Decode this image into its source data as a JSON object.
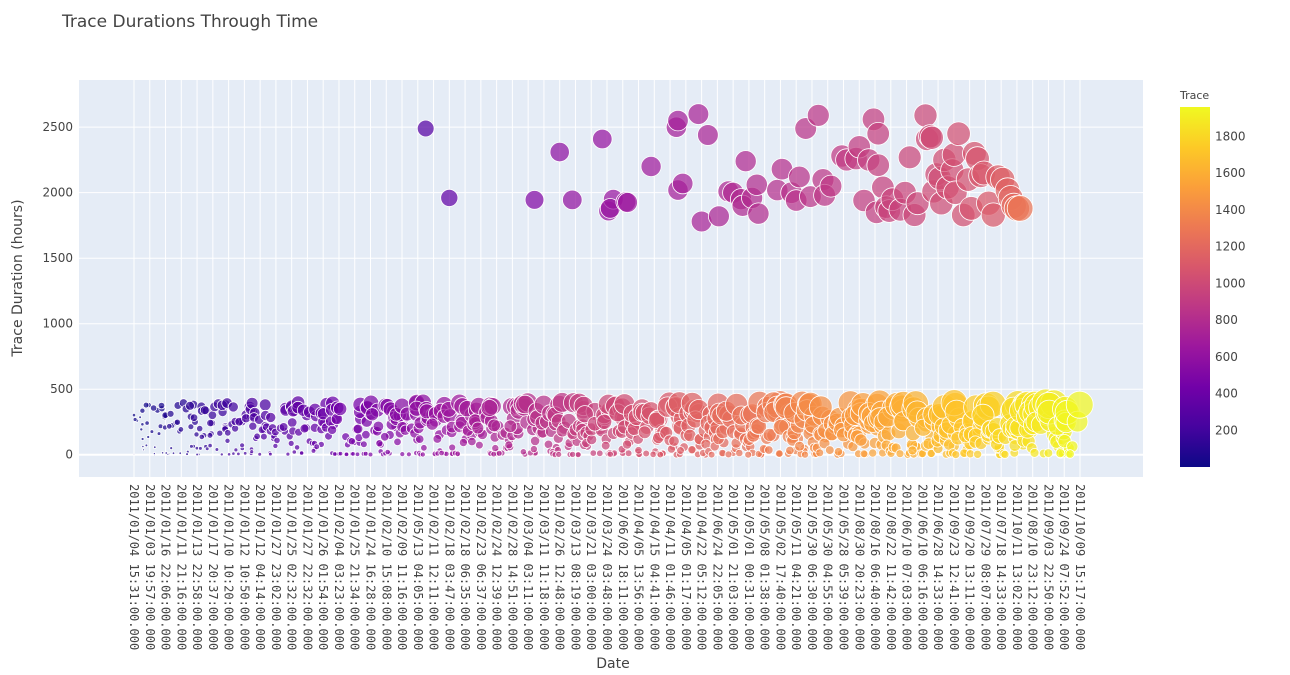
{
  "chart_data": {
    "type": "scatter",
    "title": "Trace Durations Through Time",
    "xlabel": "Date",
    "ylabel": "Trace Duration (hours)",
    "ylim": [
      -170,
      2860
    ],
    "yticks": [
      0,
      500,
      1000,
      1500,
      2000,
      2500
    ],
    "x_type": "category",
    "x_categories": [
      "2011/01/04 15:31:00.000",
      "2011/01/03 19:57:00.000",
      "2011/01/16 22:06:00.000",
      "2011/01/11 21:16:00.000",
      "2011/01/13 22:58:00.000",
      "2011/01/17 20:37:00.000",
      "2011/01/10 10:20:00.000",
      "2011/01/12 10:50:00.000",
      "2011/01/12 04:14:00.000",
      "2011/01/27 23:02:00.000",
      "2011/01/25 02:32:00.000",
      "2011/01/27 22:32:00.000",
      "2011/01/26 01:54:00.000",
      "2011/02/04 03:23:00.000",
      "2011/01/25 21:34:00.000",
      "2011/01/24 16:28:00.000",
      "2011/02/10 15:08:00.000",
      "2011/02/09 11:16:00.000",
      "2011/05/13 04:05:00.000",
      "2011/02/11 12:11:00.000",
      "2011/02/18 03:47:00.000",
      "2011/02/18 06:35:00.000",
      "2011/02/23 06:37:00.000",
      "2011/02/24 12:39:00.000",
      "2011/02/28 14:51:00.000",
      "2011/03/04 03:11:00.000",
      "2011/03/11 11:18:00.000",
      "2011/02/26 12:48:00.000",
      "2011/03/13 08:19:00.000",
      "2011/03/21 03:00:00.000",
      "2011/03/24 03:48:00.000",
      "2011/06/02 18:11:00.000",
      "2011/04/05 13:56:00.000",
      "2011/04/15 04:41:00.000",
      "2011/04/11 01:46:00.000",
      "2011/04/05 01:17:00.000",
      "2011/04/22 05:12:00.000",
      "2011/06/24 22:05:00.000",
      "2011/05/01 21:03:00.000",
      "2011/05/01 00:31:00.000",
      "2011/05/08 01:38:00.000",
      "2011/05/02 17:40:00.000",
      "2011/05/11 04:21:00.000",
      "2011/05/30 06:30:00.000",
      "2011/05/30 04:55:00.000",
      "2011/05/28 05:39:00.000",
      "2011/08/30 20:23:00.000",
      "2011/08/16 06:40:00.000",
      "2011/08/22 11:42:00.000",
      "2011/06/10 07:03:00.000",
      "2011/06/10 06:16:00.000",
      "2011/06/28 14:33:00.000",
      "2011/09/23 12:41:00.000",
      "2011/09/20 13:11:00.000",
      "2011/07/29 08:07:00.000",
      "2011/07/18 14:33:00.000",
      "2011/10/11 13:02:00.000",
      "2011/08/10 23:12:00.000",
      "2011/09/03 22:50:00.000",
      "2011/09/24 07:52:00.000",
      "2011/10/09 15:17:00.000"
    ],
    "series": [
      {
        "marker": "bubble",
        "size_by": "Trace",
        "color_by": "Trace"
      }
    ],
    "colorbar": {
      "title": "Trace",
      "range": [
        1,
        1960
      ],
      "ticks": [
        200,
        400,
        600,
        800,
        1000,
        1200,
        1400,
        1600,
        1800
      ],
      "colorscale": "plasma",
      "stops": [
        "#0d0887",
        "#46039f",
        "#7201a8",
        "#9c179e",
        "#bd3786",
        "#d8576b",
        "#ed7953",
        "#fb9f3a",
        "#fdca26",
        "#f0f921"
      ]
    },
    "big_points": [
      [
        18.5,
        2490,
        300
      ],
      [
        20.0,
        1960,
        352
      ],
      [
        25.4,
        1945,
        520
      ],
      [
        27.0,
        2310,
        580
      ],
      [
        27.8,
        1945,
        600
      ],
      [
        29.7,
        2410,
        620
      ],
      [
        30.1,
        1860,
        628
      ],
      [
        30.4,
        1950,
        634
      ],
      [
        30.2,
        1880,
        630
      ],
      [
        31.2,
        1930,
        650
      ],
      [
        31.3,
        1925,
        652
      ],
      [
        32.8,
        2200,
        680
      ],
      [
        34.5,
        2020,
        700
      ],
      [
        34.4,
        2500,
        705
      ],
      [
        34.5,
        2550,
        708
      ],
      [
        34.8,
        2070,
        712
      ],
      [
        35.8,
        2600,
        730
      ],
      [
        36.0,
        1780,
        736
      ],
      [
        36.4,
        2440,
        742
      ],
      [
        37.1,
        1820,
        755
      ],
      [
        37.7,
        2010,
        765
      ],
      [
        38.0,
        2000,
        770
      ],
      [
        38.5,
        1950,
        778
      ],
      [
        38.6,
        1900,
        780
      ],
      [
        38.8,
        2240,
        785
      ],
      [
        39.2,
        1960,
        790
      ],
      [
        39.5,
        2060,
        795
      ],
      [
        39.6,
        1840,
        798
      ],
      [
        40.8,
        2020,
        815
      ],
      [
        41.1,
        2180,
        820
      ],
      [
        41.7,
        2000,
        830
      ],
      [
        42.0,
        1940,
        838
      ],
      [
        42.2,
        2120,
        842
      ],
      [
        42.6,
        2490,
        850
      ],
      [
        42.9,
        1970,
        856
      ],
      [
        43.4,
        2590,
        865
      ],
      [
        43.7,
        2100,
        870
      ],
      [
        43.8,
        1980,
        872
      ],
      [
        44.2,
        2050,
        880
      ],
      [
        44.9,
        2280,
        892
      ],
      [
        45.2,
        2250,
        898
      ],
      [
        45.8,
        2260,
        908
      ],
      [
        46.0,
        2350,
        912
      ],
      [
        46.3,
        1940,
        918
      ],
      [
        46.6,
        2250,
        922
      ],
      [
        46.9,
        2560,
        928
      ],
      [
        47.1,
        1850,
        932
      ],
      [
        47.2,
        2450,
        936
      ],
      [
        47.2,
        2210,
        938
      ],
      [
        47.5,
        2040,
        942
      ],
      [
        47.7,
        1890,
        946
      ],
      [
        47.9,
        1860,
        950
      ],
      [
        48.1,
        1950,
        955
      ],
      [
        48.6,
        1870,
        962
      ],
      [
        48.9,
        2000,
        968
      ],
      [
        49.2,
        2270,
        975
      ],
      [
        49.5,
        1830,
        982
      ],
      [
        49.7,
        1920,
        986
      ],
      [
        50.2,
        2590,
        995
      ],
      [
        50.3,
        2410,
        998
      ],
      [
        50.5,
        2430,
        1002
      ],
      [
        50.6,
        2420,
        1005
      ],
      [
        50.7,
        2010,
        1008
      ],
      [
        50.9,
        2140,
        1012
      ],
      [
        51.1,
        2110,
        1015
      ],
      [
        51.2,
        1920,
        1018
      ],
      [
        51.4,
        2250,
        1022
      ],
      [
        51.6,
        2040,
        1026
      ],
      [
        51.9,
        2170,
        1030
      ],
      [
        52.0,
        2290,
        1034
      ],
      [
        52.1,
        2000,
        1038
      ],
      [
        52.3,
        2450,
        1042
      ],
      [
        52.6,
        1830,
        1048
      ],
      [
        52.9,
        2100,
        1055
      ],
      [
        53.1,
        1880,
        1062
      ],
      [
        53.3,
        2300,
        1068
      ],
      [
        53.5,
        2260,
        1074
      ],
      [
        53.7,
        2130,
        1080
      ],
      [
        53.9,
        2150,
        1090
      ],
      [
        54.2,
        1920,
        1100
      ],
      [
        54.5,
        1830,
        1110
      ],
      [
        54.8,
        2120,
        1125
      ],
      [
        55.1,
        2100,
        1140
      ],
      [
        55.4,
        2020,
        1160
      ],
      [
        55.6,
        1960,
        1180
      ],
      [
        55.8,
        1900,
        1210
      ],
      [
        56.0,
        1880,
        1250
      ],
      [
        56.2,
        1880,
        1290
      ]
    ]
  }
}
